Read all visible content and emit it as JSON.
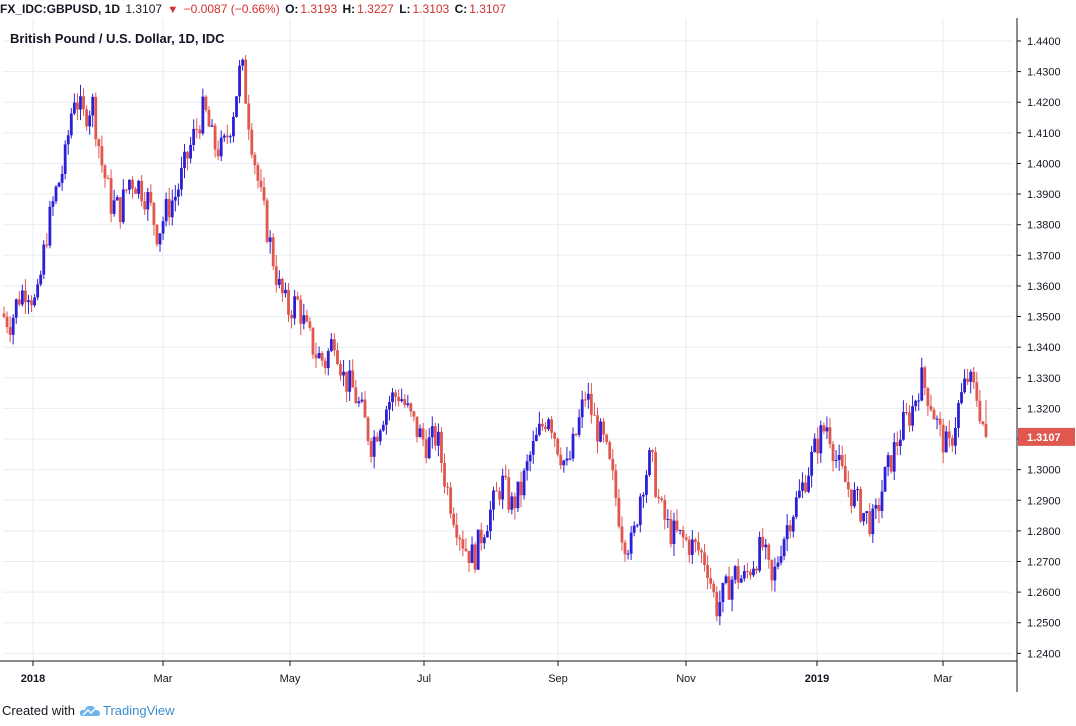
{
  "header": {
    "symbol": "FX_IDC:GBPUSD, 1D",
    "last": "1.3107",
    "change": "−0.0087 (−0.66%)",
    "o_label": "O:",
    "o_value": "1.3193",
    "h_label": "H:",
    "h_value": "1.3227",
    "l_label": "L:",
    "l_value": "1.3103",
    "c_label": "C:",
    "c_value": "1.3107"
  },
  "footer": {
    "created_with": "Created with",
    "brand": "TradingView"
  },
  "colors": {
    "up": "#2c1fd6",
    "down": "#e0574f",
    "grid": "#e5edf4",
    "axis": "#131722",
    "price_tag": "#e0574f"
  },
  "chart_data": {
    "type": "candlestick",
    "title": "British Pound / U.S. Dollar, 1D, IDC",
    "y_ticks": [
      "1.2400",
      "1.2500",
      "1.2600",
      "1.2700",
      "1.2800",
      "1.2900",
      "1.3000",
      "1.3100",
      "1.3200",
      "1.3300",
      "1.3400",
      "1.3500",
      "1.3600",
      "1.3700",
      "1.3800",
      "1.3900",
      "1.4000",
      "1.4100",
      "1.4200",
      "1.4300",
      "1.4400"
    ],
    "ylim": [
      1.2375,
      1.4475
    ],
    "x_ticks": [
      "2018",
      "Mar",
      "May",
      "Jul",
      "Sep",
      "Nov",
      "2019",
      "Mar"
    ],
    "last_price": "1.3107",
    "grid": true,
    "close_path": [
      [
        0,
        1.35
      ],
      [
        3,
        1.348
      ],
      [
        6,
        1.356
      ],
      [
        10,
        1.36
      ],
      [
        14,
        1.353
      ],
      [
        18,
        1.376
      ],
      [
        22,
        1.39
      ],
      [
        26,
        1.4
      ],
      [
        30,
        1.423
      ],
      [
        34,
        1.415
      ],
      [
        38,
        1.42
      ],
      [
        42,
        1.4
      ],
      [
        46,
        1.387
      ],
      [
        50,
        1.385
      ],
      [
        54,
        1.395
      ],
      [
        58,
        1.393
      ],
      [
        62,
        1.388
      ],
      [
        66,
        1.377
      ],
      [
        70,
        1.385
      ],
      [
        74,
        1.39
      ],
      [
        78,
        1.4
      ],
      [
        82,
        1.41
      ],
      [
        86,
        1.418
      ],
      [
        90,
        1.406
      ],
      [
        94,
        1.404
      ],
      [
        98,
        1.415
      ],
      [
        102,
        1.433
      ],
      [
        106,
        1.41
      ],
      [
        110,
        1.39
      ],
      [
        114,
        1.375
      ],
      [
        118,
        1.36
      ],
      [
        122,
        1.352
      ],
      [
        126,
        1.355
      ],
      [
        130,
        1.345
      ],
      [
        134,
        1.338
      ],
      [
        138,
        1.335
      ],
      [
        142,
        1.344
      ],
      [
        146,
        1.33
      ],
      [
        150,
        1.326
      ],
      [
        154,
        1.318
      ],
      [
        158,
        1.308
      ],
      [
        162,
        1.317
      ],
      [
        166,
        1.323
      ],
      [
        170,
        1.325
      ],
      [
        174,
        1.318
      ],
      [
        178,
        1.312
      ],
      [
        182,
        1.308
      ],
      [
        186,
        1.311
      ],
      [
        190,
        1.295
      ],
      [
        194,
        1.284
      ],
      [
        198,
        1.275
      ],
      [
        202,
        1.271
      ],
      [
        206,
        1.281
      ],
      [
        210,
        1.288
      ],
      [
        214,
        1.296
      ],
      [
        218,
        1.288
      ],
      [
        222,
        1.293
      ],
      [
        226,
        1.304
      ],
      [
        230,
        1.312
      ],
      [
        234,
        1.319
      ],
      [
        238,
        1.308
      ],
      [
        242,
        1.3
      ],
      [
        246,
        1.312
      ],
      [
        250,
        1.325
      ],
      [
        254,
        1.315
      ],
      [
        258,
        1.308
      ],
      [
        262,
        1.295
      ],
      [
        266,
        1.278
      ],
      [
        270,
        1.275
      ],
      [
        274,
        1.295
      ],
      [
        278,
        1.304
      ],
      [
        282,
        1.287
      ],
      [
        286,
        1.28
      ],
      [
        290,
        1.278
      ],
      [
        294,
        1.276
      ],
      [
        298,
        1.274
      ],
      [
        302,
        1.27
      ],
      [
        306,
        1.255
      ],
      [
        310,
        1.26
      ],
      [
        314,
        1.266
      ],
      [
        318,
        1.264
      ],
      [
        322,
        1.27
      ],
      [
        326,
        1.275
      ],
      [
        330,
        1.262
      ],
      [
        334,
        1.276
      ],
      [
        338,
        1.285
      ],
      [
        342,
        1.292
      ],
      [
        346,
        1.301
      ],
      [
        350,
        1.31
      ],
      [
        354,
        1.315
      ],
      [
        358,
        1.302
      ],
      [
        362,
        1.295
      ],
      [
        366,
        1.29
      ],
      [
        370,
        1.285
      ],
      [
        374,
        1.282
      ],
      [
        378,
        1.296
      ],
      [
        382,
        1.305
      ],
      [
        386,
        1.314
      ],
      [
        390,
        1.319
      ],
      [
        394,
        1.33
      ],
      [
        398,
        1.323
      ],
      [
        402,
        1.312
      ],
      [
        406,
        1.306
      ],
      [
        410,
        1.32
      ],
      [
        414,
        1.33
      ],
      [
        418,
        1.324
      ],
      [
        422,
        1.3107
      ]
    ]
  }
}
